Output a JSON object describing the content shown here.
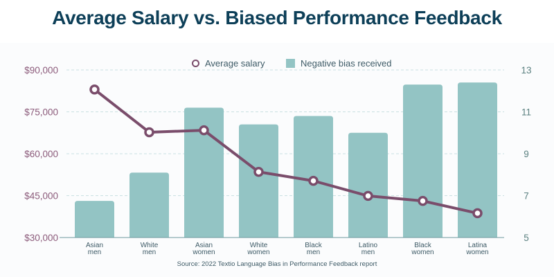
{
  "chart_data": {
    "type": "bar+line",
    "title": "Average Salary vs. Biased Performance Feedback",
    "source": "Source: 2022 Textio Language Bias in Performance Feedback report",
    "categories": [
      [
        "Asian",
        "men"
      ],
      [
        "White",
        "men"
      ],
      [
        "Asian",
        "women"
      ],
      [
        "White",
        "women"
      ],
      [
        "Black",
        "men"
      ],
      [
        "Latino",
        "men"
      ],
      [
        "Black",
        "women"
      ],
      [
        "Latina",
        "women"
      ]
    ],
    "series": [
      {
        "name": "Average salary",
        "type": "line",
        "axis": "left",
        "color": "#7a4d6b",
        "values": [
          83000,
          67700,
          68400,
          53500,
          50300,
          44900,
          43100,
          38700
        ]
      },
      {
        "name": "Negative bias received",
        "type": "bar",
        "axis": "right",
        "color": "#93c4c4",
        "values": [
          6.75,
          8.1,
          11.2,
          10.4,
          10.8,
          10.0,
          12.3,
          12.4
        ]
      }
    ],
    "left_axis": {
      "range": [
        30000,
        90000
      ],
      "ticks": [
        30000,
        45000,
        60000,
        75000,
        90000
      ],
      "tick_labels": [
        "$30,000",
        "$45,000",
        "$60,000",
        "$75,000",
        "$90,000"
      ],
      "color": "#8b5a7a"
    },
    "right_axis": {
      "range": [
        5,
        13
      ],
      "ticks": [
        5,
        7,
        9,
        11,
        13
      ],
      "tick_labels": [
        "5",
        "7",
        "9",
        "11",
        "13"
      ],
      "color": "#5a8080"
    },
    "grid": true,
    "legend_position": "top-center"
  },
  "legend": {
    "salary_label": "Average salary",
    "bias_label": "Negative bias received"
  }
}
